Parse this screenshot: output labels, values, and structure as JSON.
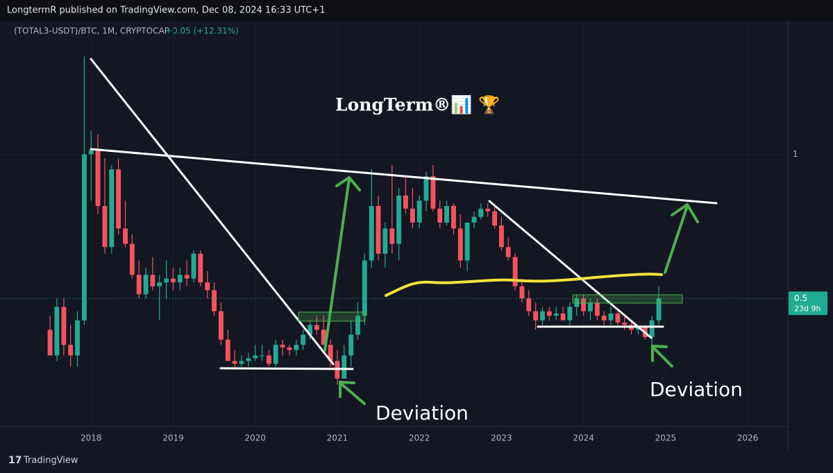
{
  "header": "LongtermR published on TradingView.com, Dec 08, 2024 16:33 UTC+1",
  "footer": "TradingView",
  "chart_data": {
    "type": "candlestick",
    "symbol": "(TOTAL3-USDT)/BTC, 1M, CRYPTOCAP",
    "change": "+0.05 (+12.31%)",
    "title": "LongTerm®📊 🏆",
    "annotations": [
      "Deviation",
      "Deviation"
    ],
    "last_price": 0.5,
    "countdown": "23d 9h",
    "up_color": "#22ab94",
    "down_color": "#f7525f",
    "log_scale": true,
    "xlim": [
      2016.89,
      2026.49
    ],
    "xticks": [
      2018,
      2019,
      2020,
      2021,
      2022,
      2023,
      2024,
      2025,
      2026
    ],
    "ylim": [
      0.27,
      1.9
    ],
    "yticks": [
      1
    ],
    "x": [
      2017.5,
      2017.583,
      2017.667,
      2017.75,
      2017.833,
      2017.917,
      2018,
      2018.083,
      2018.167,
      2018.25,
      2018.333,
      2018.417,
      2018.5,
      2018.583,
      2018.667,
      2018.75,
      2018.833,
      2018.917,
      2019,
      2019.083,
      2019.167,
      2019.25,
      2019.333,
      2019.417,
      2019.5,
      2019.583,
      2019.667,
      2019.75,
      2019.833,
      2019.917,
      2020,
      2020.083,
      2020.167,
      2020.25,
      2020.333,
      2020.417,
      2020.5,
      2020.583,
      2020.667,
      2020.75,
      2020.833,
      2020.917,
      2021,
      2021.083,
      2021.167,
      2021.25,
      2021.333,
      2021.417,
      2021.5,
      2021.583,
      2021.667,
      2021.75,
      2021.833,
      2021.917,
      2022,
      2022.083,
      2022.167,
      2022.25,
      2022.333,
      2022.417,
      2022.5,
      2022.583,
      2022.667,
      2022.75,
      2022.833,
      2022.917,
      2023,
      2023.083,
      2023.167,
      2023.25,
      2023.333,
      2023.417,
      2023.5,
      2023.583,
      2023.667,
      2023.75,
      2023.833,
      2023.917,
      2024,
      2024.083,
      2024.167,
      2024.25,
      2024.333,
      2024.417,
      2024.5,
      2024.583,
      2024.667,
      2024.75,
      2024.833,
      2024.917
    ],
    "open": [
      0.43,
      0.38,
      0.48,
      0.4,
      0.38,
      0.45,
      1.0,
      1.02,
      0.78,
      0.64,
      0.93,
      0.7,
      0.65,
      0.56,
      0.51,
      0.56,
      0.53,
      0.54,
      0.55,
      0.54,
      0.56,
      0.55,
      0.62,
      0.54,
      0.52,
      0.47,
      0.41,
      0.37,
      0.365,
      0.37,
      0.375,
      0.38,
      0.38,
      0.365,
      0.4,
      0.395,
      0.39,
      0.4,
      0.42,
      0.44,
      0.43,
      0.4,
      0.37,
      0.34,
      0.38,
      0.42,
      0.46,
      0.6,
      0.78,
      0.62,
      0.7,
      0.65,
      0.82,
      0.77,
      0.72,
      0.8,
      0.9,
      0.77,
      0.72,
      0.78,
      0.7,
      0.6,
      0.72,
      0.74,
      0.77,
      0.76,
      0.71,
      0.64,
      0.61,
      0.53,
      0.5,
      0.47,
      0.45,
      0.47,
      0.46,
      0.465,
      0.45,
      0.48,
      0.5,
      0.47,
      0.49,
      0.46,
      0.45,
      0.465,
      0.445,
      0.44,
      0.43,
      0.435,
      0.415,
      0.45
    ],
    "high": [
      0.46,
      0.5,
      0.5,
      0.44,
      0.47,
      1.6,
      1.12,
      1.1,
      0.98,
      0.95,
      0.98,
      0.8,
      0.68,
      0.6,
      0.58,
      0.61,
      0.56,
      0.6,
      0.58,
      0.58,
      0.6,
      0.63,
      0.63,
      0.57,
      0.54,
      0.49,
      0.43,
      0.39,
      0.38,
      0.385,
      0.4,
      0.4,
      0.39,
      0.41,
      0.41,
      0.4,
      0.41,
      0.43,
      0.45,
      0.46,
      0.46,
      0.41,
      0.39,
      0.4,
      0.45,
      0.49,
      0.62,
      0.93,
      0.82,
      0.72,
      0.95,
      0.85,
      0.9,
      0.85,
      0.82,
      0.92,
      0.95,
      0.8,
      0.8,
      0.79,
      0.75,
      0.72,
      0.76,
      0.79,
      0.79,
      0.78,
      0.74,
      0.67,
      0.62,
      0.55,
      0.52,
      0.49,
      0.48,
      0.48,
      0.48,
      0.48,
      0.49,
      0.51,
      0.51,
      0.5,
      0.5,
      0.47,
      0.48,
      0.47,
      0.46,
      0.45,
      0.44,
      0.44,
      0.46,
      0.53
    ],
    "low": [
      0.38,
      0.37,
      0.38,
      0.36,
      0.36,
      0.44,
      0.8,
      0.75,
      0.62,
      0.62,
      0.68,
      0.64,
      0.55,
      0.5,
      0.5,
      0.52,
      0.45,
      0.5,
      0.52,
      0.52,
      0.53,
      0.54,
      0.53,
      0.5,
      0.46,
      0.4,
      0.37,
      0.355,
      0.36,
      0.36,
      0.37,
      0.37,
      0.36,
      0.36,
      0.38,
      0.38,
      0.38,
      0.39,
      0.41,
      0.42,
      0.4,
      0.36,
      0.33,
      0.34,
      0.36,
      0.41,
      0.44,
      0.58,
      0.6,
      0.58,
      0.62,
      0.6,
      0.75,
      0.7,
      0.7,
      0.76,
      0.76,
      0.7,
      0.71,
      0.68,
      0.58,
      0.57,
      0.7,
      0.73,
      0.74,
      0.7,
      0.63,
      0.6,
      0.52,
      0.49,
      0.46,
      0.43,
      0.44,
      0.45,
      0.45,
      0.45,
      0.44,
      0.46,
      0.46,
      0.45,
      0.45,
      0.44,
      0.44,
      0.44,
      0.43,
      0.42,
      0.42,
      0.41,
      0.4,
      0.44
    ],
    "close": [
      0.38,
      0.48,
      0.4,
      0.38,
      0.45,
      1.0,
      1.02,
      0.78,
      0.64,
      0.93,
      0.7,
      0.65,
      0.56,
      0.51,
      0.56,
      0.53,
      0.54,
      0.55,
      0.54,
      0.56,
      0.55,
      0.62,
      0.54,
      0.52,
      0.47,
      0.41,
      0.37,
      0.365,
      0.37,
      0.375,
      0.38,
      0.38,
      0.365,
      0.4,
      0.395,
      0.39,
      0.4,
      0.42,
      0.44,
      0.43,
      0.4,
      0.37,
      0.34,
      0.38,
      0.42,
      0.46,
      0.6,
      0.78,
      0.62,
      0.7,
      0.65,
      0.82,
      0.77,
      0.72,
      0.8,
      0.9,
      0.77,
      0.72,
      0.78,
      0.7,
      0.6,
      0.72,
      0.74,
      0.77,
      0.76,
      0.71,
      0.64,
      0.61,
      0.53,
      0.5,
      0.47,
      0.45,
      0.47,
      0.46,
      0.465,
      0.45,
      0.48,
      0.5,
      0.47,
      0.49,
      0.46,
      0.45,
      0.465,
      0.445,
      0.44,
      0.43,
      0.435,
      0.415,
      0.45,
      0.5
    ]
  }
}
